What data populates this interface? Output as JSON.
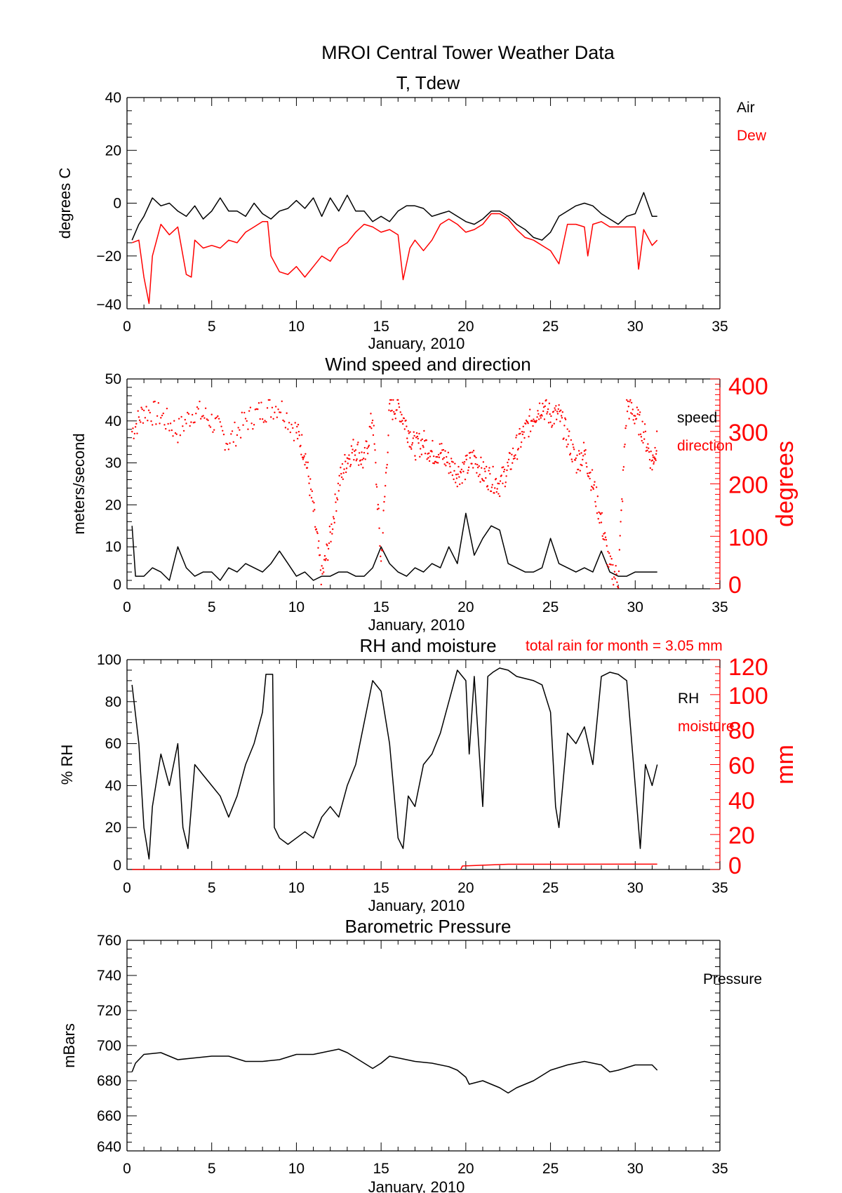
{
  "title": "MROI Central Tower Weather Data",
  "colors": {
    "primary": "#000000",
    "secondary": "#ff0000"
  },
  "chart_data": [
    {
      "type": "line",
      "title": "T, Tdew",
      "xlabel": "January, 2010",
      "ylabel": "degrees C",
      "xlim": [
        0,
        35
      ],
      "ylim": [
        -40,
        40
      ],
      "xticks": [
        "0",
        "5",
        "10",
        "15",
        "20",
        "25",
        "30",
        "35"
      ],
      "yticks": [
        "−40",
        "−20",
        "0",
        "20",
        "40"
      ],
      "legend": [
        "Air",
        "Dew"
      ],
      "series": [
        {
          "name": "Air",
          "color": "#000000",
          "x": [
            0.3,
            0.7,
            1,
            1.5,
            2,
            2.5,
            3,
            3.5,
            4,
            4.5,
            5,
            5.5,
            6,
            6.5,
            7,
            7.5,
            8,
            8.5,
            9,
            9.5,
            10,
            10.5,
            11,
            11.5,
            12,
            12.5,
            13,
            13.5,
            14,
            14.5,
            15,
            15.5,
            16,
            16.5,
            17,
            17.5,
            18,
            18.5,
            19,
            19.5,
            20,
            20.5,
            21,
            21.5,
            22,
            22.5,
            23,
            23.5,
            24,
            24.5,
            25,
            25.5,
            26,
            26.5,
            27,
            27.5,
            28,
            28.5,
            29,
            29.5,
            30,
            30.5,
            31,
            31.3
          ],
          "y": [
            -14,
            -8,
            -5,
            2,
            -1,
            0,
            -3,
            -5,
            -1,
            -6,
            -3,
            2,
            -3,
            -3,
            -5,
            0,
            -4,
            -6,
            -3,
            -2,
            1,
            -2,
            2,
            -5,
            2,
            -3,
            3,
            -3,
            -3,
            -7,
            -5,
            -7,
            -3,
            -1,
            -1,
            -2,
            -5,
            -4,
            -3,
            -5,
            -7,
            -8,
            -6,
            -3,
            -3,
            -5,
            -8,
            -10,
            -13,
            -14,
            -11,
            -5,
            -3,
            -1,
            0,
            -1,
            -4,
            -6,
            -8,
            -5,
            -4,
            4,
            -5,
            -5
          ]
        },
        {
          "name": "Dew",
          "color": "#ff0000",
          "x": [
            0.3,
            0.7,
            1,
            1.3,
            1.5,
            2,
            2.5,
            3,
            3.5,
            3.8,
            4,
            4.5,
            5,
            5.5,
            6,
            6.5,
            7,
            7.5,
            8,
            8.3,
            8.5,
            9,
            9.5,
            10,
            10.5,
            11,
            11.5,
            12,
            12.5,
            13,
            13.5,
            14,
            14.5,
            15,
            15.5,
            16,
            16.3,
            16.7,
            17,
            17.5,
            18,
            18.5,
            19,
            19.5,
            20,
            20.5,
            21,
            21.5,
            22,
            22.5,
            23,
            23.5,
            24,
            24.5,
            25,
            25.5,
            26,
            26.5,
            27,
            27.2,
            27.5,
            28,
            28.5,
            29,
            29.5,
            30,
            30.2,
            30.5,
            31,
            31.3
          ],
          "y": [
            -15,
            -14,
            -28,
            -38,
            -20,
            -8,
            -12,
            -9,
            -27,
            -28,
            -14,
            -17,
            -16,
            -17,
            -14,
            -15,
            -11,
            -9,
            -7,
            -7,
            -20,
            -26,
            -27,
            -24,
            -28,
            -24,
            -20,
            -22,
            -17,
            -15,
            -11,
            -8,
            -9,
            -11,
            -10,
            -12,
            -29,
            -17,
            -14,
            -18,
            -14,
            -8,
            -6,
            -8,
            -11,
            -10,
            -8,
            -4,
            -4,
            -6,
            -10,
            -13,
            -14,
            -16,
            -18,
            -23,
            -8,
            -8,
            -9,
            -20,
            -8,
            -7,
            -9,
            -9,
            -9,
            -9,
            -25,
            -10,
            -16,
            -14
          ]
        }
      ]
    },
    {
      "type": "line",
      "title": "Wind speed and direction",
      "xlabel": "January, 2010",
      "ylabel": "meters/second",
      "y2label": "degrees",
      "xlim": [
        0,
        35
      ],
      "ylim": [
        0,
        50
      ],
      "y2lim": [
        0,
        400
      ],
      "xticks": [
        "0",
        "5",
        "10",
        "15",
        "20",
        "25",
        "30",
        "35"
      ],
      "yticks": [
        "0",
        "10",
        "20",
        "30",
        "40",
        "50"
      ],
      "y2ticks": [
        "0",
        "100",
        "200",
        "300",
        "400"
      ],
      "legend": [
        "speed",
        "direction"
      ],
      "series": [
        {
          "name": "speed",
          "color": "#000000",
          "axis": "left",
          "x": [
            0.3,
            0.5,
            1,
            1.5,
            2,
            2.5,
            3,
            3.5,
            4,
            4.5,
            5,
            5.5,
            6,
            6.5,
            7,
            7.5,
            8,
            8.5,
            9,
            9.5,
            10,
            10.5,
            11,
            11.5,
            12,
            12.5,
            13,
            13.5,
            14,
            14.5,
            15,
            15.5,
            16,
            16.5,
            17,
            17.5,
            18,
            18.5,
            19,
            19.5,
            20,
            20.5,
            21,
            21.5,
            22,
            22.5,
            23,
            23.5,
            24,
            24.5,
            25,
            25.5,
            26,
            26.5,
            27,
            27.5,
            28,
            28.5,
            29,
            29.5,
            30,
            30.5,
            31,
            31.3
          ],
          "y": [
            15,
            3,
            3,
            5,
            4,
            2,
            10,
            5,
            3,
            4,
            4,
            2,
            5,
            4,
            6,
            5,
            4,
            6,
            9,
            6,
            3,
            4,
            2,
            3,
            3,
            4,
            4,
            3,
            3,
            5,
            10,
            6,
            4,
            3,
            5,
            4,
            6,
            5,
            10,
            6,
            18,
            8,
            12,
            15,
            14,
            6,
            5,
            4,
            4,
            5,
            12,
            6,
            5,
            4,
            5,
            4,
            9,
            4,
            3,
            3,
            4,
            4,
            4,
            4
          ]
        },
        {
          "name": "direction",
          "color": "#ff0000",
          "axis": "right",
          "style": "dots",
          "x": [
            0.3,
            1,
            2,
            3,
            4,
            5,
            6,
            7,
            8,
            9,
            10,
            10.5,
            11,
            11.5,
            12,
            12.5,
            13,
            13.5,
            14,
            14.5,
            15,
            15.5,
            16,
            16.5,
            17,
            17.5,
            18,
            18.5,
            19,
            19.5,
            20,
            20.5,
            21,
            21.5,
            22,
            22.5,
            23,
            23.5,
            24,
            24.5,
            25,
            25.5,
            26,
            26.5,
            27,
            27.5,
            28,
            28.5,
            29,
            29.5,
            30,
            30.5,
            31,
            31.3
          ],
          "y": [
            300,
            340,
            330,
            300,
            340,
            320,
            280,
            320,
            340,
            350,
            300,
            260,
            150,
            20,
            100,
            200,
            250,
            270,
            240,
            330,
            50,
            340,
            350,
            310,
            270,
            280,
            260,
            260,
            240,
            220,
            230,
            250,
            220,
            210,
            200,
            230,
            270,
            300,
            330,
            350,
            330,
            330,
            290,
            240,
            260,
            200,
            130,
            40,
            20,
            350,
            330,
            300,
            240,
            280
          ]
        }
      ]
    },
    {
      "type": "line",
      "title": "RH and moisture",
      "annotation": "total rain for month =     3.05 mm",
      "xlabel": "January, 2010",
      "ylabel": "% RH",
      "y2label": "mm",
      "xlim": [
        0,
        35
      ],
      "ylim": [
        0,
        100
      ],
      "y2lim": [
        0,
        120
      ],
      "xticks": [
        "0",
        "5",
        "10",
        "15",
        "20",
        "25",
        "30",
        "35"
      ],
      "yticks": [
        "0",
        "20",
        "40",
        "60",
        "80",
        "100"
      ],
      "y2ticks": [
        "0",
        "20",
        "40",
        "60",
        "80",
        "100",
        "120"
      ],
      "legend": [
        "RH",
        "moisture"
      ],
      "series": [
        {
          "name": "RH",
          "color": "#000000",
          "axis": "left",
          "x": [
            0.3,
            0.7,
            1,
            1.3,
            1.5,
            2,
            2.5,
            3,
            3.3,
            3.6,
            4,
            4.5,
            5,
            5.5,
            6,
            6.5,
            7,
            7.5,
            8,
            8.2,
            8.6,
            8.7,
            9,
            9.5,
            10,
            10.5,
            11,
            11.5,
            12,
            12.5,
            13,
            13.5,
            14,
            14.5,
            15,
            15.5,
            16,
            16.3,
            16.6,
            17,
            17.5,
            18,
            18.5,
            19,
            19.5,
            20,
            20.2,
            20.5,
            21,
            21.3,
            21.6,
            22,
            22.5,
            23,
            24,
            24.5,
            25,
            25.3,
            25.5,
            26,
            26.5,
            27,
            27.5,
            28,
            28.5,
            29,
            29.5,
            30,
            30.3,
            30.6,
            31,
            31.3
          ],
          "y": [
            88,
            60,
            20,
            5,
            30,
            55,
            40,
            60,
            20,
            10,
            50,
            45,
            40,
            35,
            25,
            35,
            50,
            60,
            75,
            93,
            93,
            20,
            15,
            12,
            15,
            18,
            15,
            25,
            30,
            25,
            40,
            50,
            70,
            90,
            85,
            60,
            15,
            10,
            35,
            30,
            50,
            55,
            65,
            80,
            95,
            90,
            55,
            92,
            30,
            92,
            94,
            96,
            95,
            92,
            90,
            88,
            75,
            30,
            20,
            65,
            60,
            68,
            50,
            92,
            94,
            93,
            90,
            40,
            10,
            50,
            40,
            50
          ]
        },
        {
          "name": "moisture",
          "color": "#ff0000",
          "axis": "right",
          "x": [
            0.3,
            19.7,
            19.8,
            22.5,
            31.3
          ],
          "y": [
            0,
            0,
            2,
            3,
            3.05
          ]
        }
      ]
    },
    {
      "type": "line",
      "title": "Barometric Pressure",
      "xlabel": "January, 2010",
      "ylabel": "mBars",
      "xlim": [
        0,
        35
      ],
      "ylim": [
        640,
        760
      ],
      "xticks": [
        "0",
        "5",
        "10",
        "15",
        "20",
        "25",
        "30",
        "35"
      ],
      "yticks": [
        "640",
        "660",
        "680",
        "700",
        "720",
        "740",
        "760"
      ],
      "legend": [
        "Pressure"
      ],
      "series": [
        {
          "name": "Pressure",
          "color": "#000000",
          "x": [
            0.3,
            0.5,
            1,
            2,
            3,
            4,
            5,
            6,
            7,
            8,
            9,
            10,
            11,
            12,
            12.5,
            13,
            14,
            14.5,
            15,
            15.5,
            16,
            17,
            18,
            19,
            19.5,
            20,
            20.2,
            21,
            22,
            22.5,
            23,
            24,
            25,
            26,
            26.5,
            27,
            28,
            28.5,
            29,
            30,
            31,
            31.3
          ],
          "y": [
            685,
            690,
            695,
            696,
            692,
            693,
            694,
            694,
            691,
            691,
            692,
            695,
            695,
            697,
            698,
            696,
            690,
            687,
            690,
            694,
            693,
            691,
            690,
            688,
            686,
            682,
            678,
            680,
            676,
            673,
            676,
            680,
            686,
            689,
            690,
            691,
            689,
            685,
            686,
            689,
            689,
            686
          ]
        }
      ]
    }
  ]
}
